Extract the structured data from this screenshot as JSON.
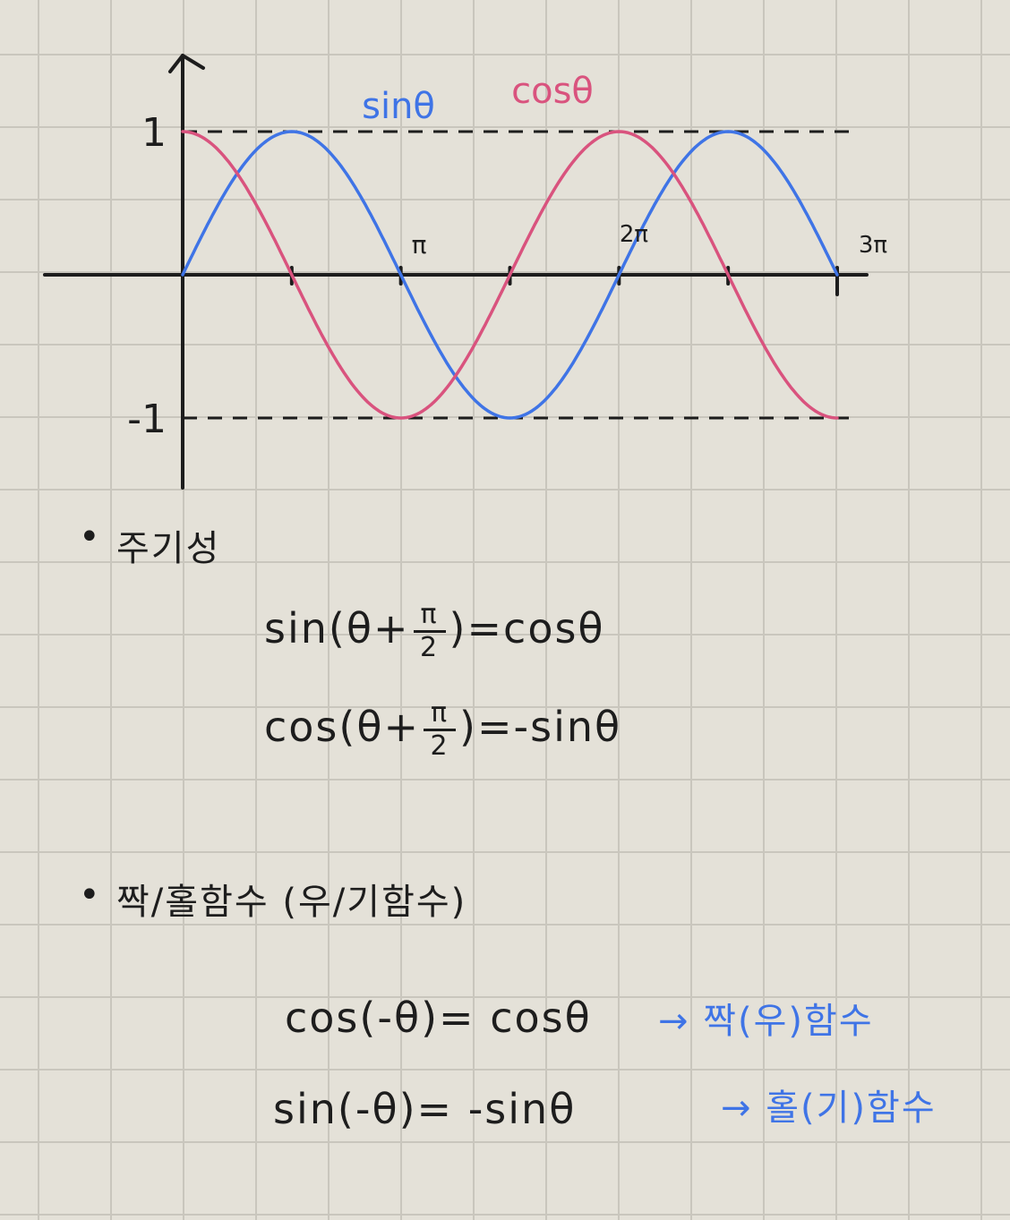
{
  "chart_data": {
    "type": "line",
    "title": "",
    "xlabel": "",
    "ylabel": "",
    "x_tick_labels": [
      "π",
      "2π",
      "3π"
    ],
    "x_ticks": [
      3.14159,
      6.28319,
      9.42478
    ],
    "y_tick_labels": [
      "1",
      "-1"
    ],
    "y_ticks": [
      1,
      -1
    ],
    "xlim": [
      0,
      9.42478
    ],
    "ylim": [
      -1,
      1
    ],
    "reference_lines": [
      1,
      -1
    ],
    "series": [
      {
        "name": "sinθ",
        "color": "#3f74e6",
        "function": "sin",
        "x": [
          0,
          0.785,
          1.571,
          2.356,
          3.142,
          3.927,
          4.712,
          5.498,
          6.283,
          7.069,
          7.854,
          8.639,
          9.425
        ],
        "y": [
          0,
          0.71,
          1,
          0.71,
          0,
          -0.71,
          -1,
          -0.71,
          0,
          0.71,
          1,
          0.71,
          0
        ]
      },
      {
        "name": "cosθ",
        "color": "#d9537e",
        "function": "cos",
        "x": [
          0,
          0.785,
          1.571,
          2.356,
          3.142,
          3.927,
          4.712,
          5.498,
          6.283,
          7.069,
          7.854,
          8.639,
          9.425
        ],
        "y": [
          1,
          0.71,
          0,
          -0.71,
          -1,
          -0.71,
          0,
          0.71,
          1,
          0.71,
          0,
          -0.71,
          -1
        ]
      }
    ]
  },
  "notes": {
    "section1": {
      "bullet": "•",
      "heading": "주기성",
      "eq1": {
        "left": "sin(θ+",
        "num": "π",
        "den": "2",
        "right": ")=cosθ"
      },
      "eq2": {
        "left": "cos(θ+",
        "num": "π",
        "den": "2",
        "right": ")=-sinθ"
      }
    },
    "section2": {
      "bullet": "•",
      "heading": "짝/홀함수 (우/기함수)",
      "eq1": {
        "text": "cos(-θ)= cosθ",
        "arrow_note": "→ 짝(우)함수"
      },
      "eq2": {
        "text": "sin(-θ)= -sinθ",
        "arrow_note": "→ 홀(기)함수"
      }
    }
  },
  "colors": {
    "ink": "#1d1d1d",
    "sin": "#3f74e6",
    "cos": "#d9537e",
    "note": "#3f74e6"
  }
}
